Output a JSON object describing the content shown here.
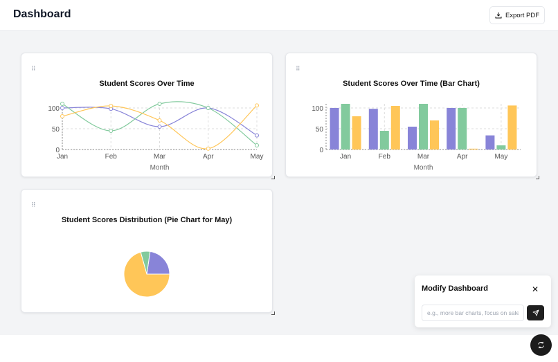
{
  "header": {
    "title": "Dashboard",
    "export_label": "Export PDF"
  },
  "colors": {
    "series": [
      "#8884d8",
      "#82ca9d",
      "#ffc658"
    ]
  },
  "chart_data": [
    {
      "type": "line",
      "title": "Student Scores Over Time",
      "xlabel": "Month",
      "categories": [
        "Jan",
        "Feb",
        "Mar",
        "Apr",
        "May"
      ],
      "yticks": [
        "0",
        "50",
        "100"
      ],
      "ylim": [
        0,
        110
      ],
      "grid": true,
      "curve": "smooth",
      "series": [
        {
          "values": [
            100,
            98,
            55,
            100,
            34
          ]
        },
        {
          "values": [
            110,
            45,
            110,
            100,
            10
          ]
        },
        {
          "values": [
            80,
            105,
            70,
            2,
            106
          ]
        }
      ]
    },
    {
      "type": "bar",
      "title": "Student Scores Over Time (Bar Chart)",
      "xlabel": "Month",
      "categories": [
        "Jan",
        "Feb",
        "Mar",
        "Apr",
        "May"
      ],
      "yticks": [
        "0",
        "50",
        "100"
      ],
      "ylim": [
        0,
        110
      ],
      "grid": true,
      "series": [
        {
          "values": [
            100,
            98,
            55,
            100,
            34
          ]
        },
        {
          "values": [
            110,
            45,
            110,
            100,
            10
          ]
        },
        {
          "values": [
            80,
            105,
            70,
            2,
            106
          ]
        }
      ]
    },
    {
      "type": "pie",
      "title": "Student Scores Distribution (Pie Chart for May)",
      "values": [
        34,
        10,
        106
      ]
    }
  ],
  "panel": {
    "title": "Modify Dashboard",
    "placeholder": "e.g., more bar charts, focus on sales"
  }
}
